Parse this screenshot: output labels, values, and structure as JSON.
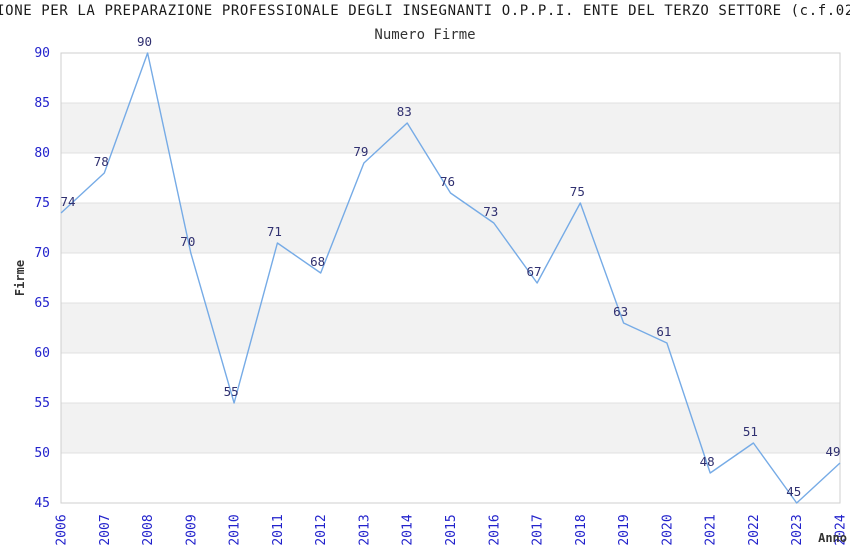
{
  "chart_data": {
    "type": "line",
    "title": "IONE PER LA PREPARAZIONE PROFESSIONALE DEGLI INSEGNANTI O.P.P.I. ENTE DEL TERZO SETTORE (c.f.02",
    "subtitle": "Numero Firme",
    "xlabel": "Anno",
    "ylabel": "Firme",
    "categories": [
      "2006",
      "2007",
      "2008",
      "2009",
      "2010",
      "2011",
      "2012",
      "2013",
      "2014",
      "2015",
      "2016",
      "2017",
      "2018",
      "2019",
      "2020",
      "2021",
      "2022",
      "2023",
      "2024"
    ],
    "values": [
      74,
      78,
      90,
      70,
      55,
      71,
      68,
      79,
      83,
      76,
      73,
      67,
      75,
      63,
      61,
      48,
      51,
      45,
      49
    ],
    "ylim": [
      45,
      90
    ],
    "ytick_step": 5,
    "yticks": [
      45,
      50,
      55,
      60,
      65,
      70,
      75,
      80,
      85,
      90
    ],
    "grid": true,
    "alternating_bands": true,
    "legend_position": "none",
    "data_labels_visible": true,
    "colors": {
      "line": "#76abe6",
      "tick_label": "#2222cc",
      "data_label": "#303070",
      "band": "#f2f2f2",
      "gridline": "#e0e0e0",
      "plot_border": "#cfcfcf",
      "title": "#1a1a1a",
      "axis_title": "#333333"
    }
  }
}
